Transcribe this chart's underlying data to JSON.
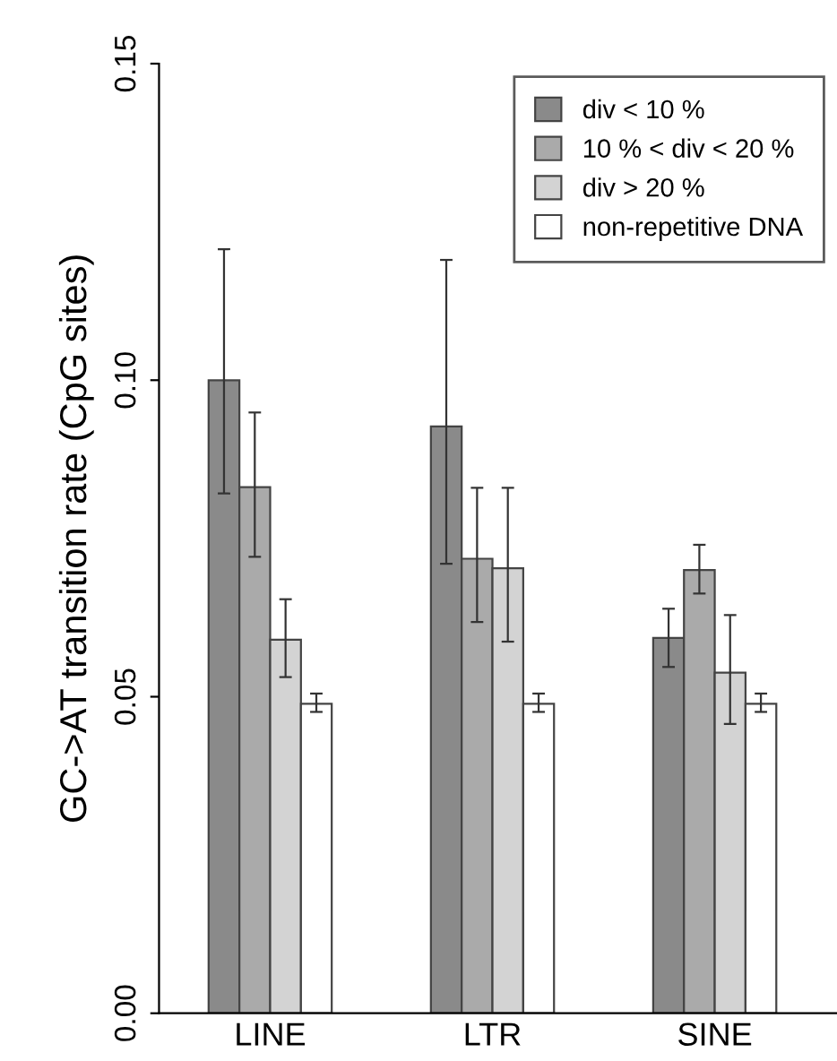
{
  "chart_data": {
    "type": "bar",
    "ylabel": "GC->AT transition rate (CpG sites)",
    "categories": [
      "LINE",
      "LTR",
      "SINE"
    ],
    "ylim": [
      0,
      0.15
    ],
    "yticks": [
      {
        "value": 0,
        "label": "0.00"
      },
      {
        "value": 0.05,
        "label": "0.05"
      },
      {
        "value": 0.1,
        "label": "0.10"
      },
      {
        "value": 0.15,
        "label": "0.15"
      }
    ],
    "legend": "top right",
    "grid": false,
    "series": [
      {
        "name": "div < 10 %",
        "color": "#8a8a8a",
        "values": [
          0.1,
          0.0927,
          0.0593
        ],
        "errors": [
          [
            0.0821,
            0.1207
          ],
          [
            0.071,
            0.119
          ],
          [
            0.0547,
            0.0639
          ]
        ]
      },
      {
        "name": "10 % < div < 20 %",
        "color": "#aaaaaa",
        "values": [
          0.0831,
          0.0718,
          0.07
        ],
        "errors": [
          [
            0.0721,
            0.0949
          ],
          [
            0.0618,
            0.083
          ],
          [
            0.0663,
            0.074
          ]
        ]
      },
      {
        "name": "div > 20 %",
        "color": "#d3d3d3",
        "values": [
          0.059,
          0.0703,
          0.0538
        ],
        "errors": [
          [
            0.0531,
            0.0654
          ],
          [
            0.0587,
            0.083
          ],
          [
            0.0457,
            0.0629
          ]
        ]
      },
      {
        "name": "non-repetitive DNA",
        "color": "#ffffff",
        "values": [
          0.0489,
          0.0489,
          0.0489
        ],
        "errors": [
          [
            0.0476,
            0.0505
          ],
          [
            0.0476,
            0.0505
          ],
          [
            0.0476,
            0.0505
          ]
        ]
      }
    ]
  }
}
